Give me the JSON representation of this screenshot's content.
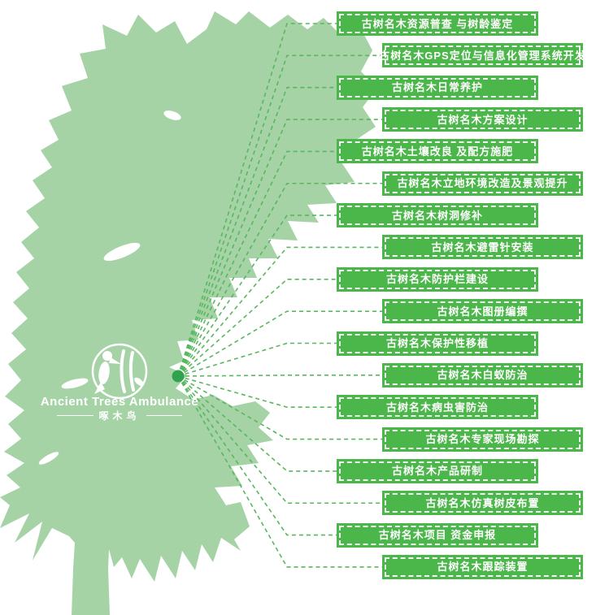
{
  "logo": {
    "title": "Ancient Trees Ambulance",
    "subtitle": "啄木鸟"
  },
  "colors": {
    "banner_green": "#4bb649",
    "tree_green": "#a5d3a6",
    "line_green": "#58b75f",
    "dot_green": "#2ea24c",
    "text_white": "#ffffff"
  },
  "services": [
    {
      "label": "古树名木资源普查 与树龄鉴定"
    },
    {
      "label": "古树名木GPS定位与信息化管理系统开发"
    },
    {
      "label": "古树名木日常养护"
    },
    {
      "label": "古树名木方案设计"
    },
    {
      "label": "古树名木土壤改良 及配方施肥"
    },
    {
      "label": "古树名木立地环境改造及景观提升"
    },
    {
      "label": "古树名木树洞修补"
    },
    {
      "label": "古树名木避雷针安装"
    },
    {
      "label": "古树名木防护栏建设"
    },
    {
      "label": "古树名木图册编撰"
    },
    {
      "label": "古树名木保护性移植"
    },
    {
      "label": "古树名木白蚁防治"
    },
    {
      "label": "古树名木病虫害防治"
    },
    {
      "label": "古树名木专家现场勘探"
    },
    {
      "label": "古树名木产品研制"
    },
    {
      "label": "古树名木仿真树皮布置"
    },
    {
      "label": "古树名木项目 资金申报"
    },
    {
      "label": "古树名木跟踪装置"
    }
  ]
}
